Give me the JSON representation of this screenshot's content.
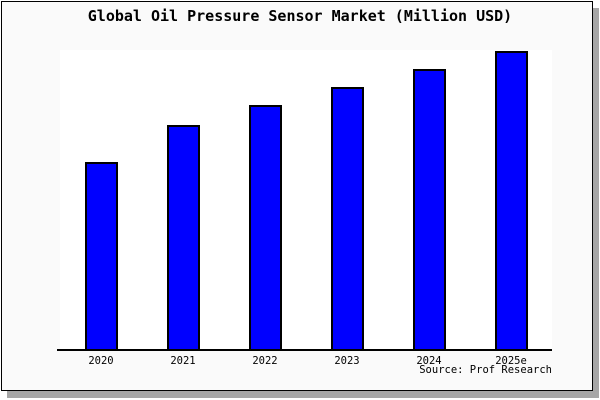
{
  "chart_data": {
    "type": "bar",
    "title": "Global Oil Pressure Sensor Market (Million USD)",
    "categories": [
      "2020",
      "2021",
      "2022",
      "2023",
      "2024",
      "2025e"
    ],
    "values": [
      189,
      226,
      246,
      264,
      282,
      300
    ],
    "values_estimated": true,
    "xlabel": "",
    "ylabel": "",
    "ylim": [
      0,
      301
    ],
    "grid": false,
    "legend": false,
    "y_axis_visible": false,
    "x_axis_visible": true,
    "source": "Source: Prof Research"
  },
  "colors": {
    "bar_fill": "#0000ff",
    "bar_border": "#000000",
    "card_bg": "#fafafa",
    "plot_bg": "#ffffff",
    "card_border": "#000000",
    "axis": "#000000",
    "shadow": "#a6a6a6",
    "page_bg": "#ffffff",
    "text": "#000000"
  }
}
